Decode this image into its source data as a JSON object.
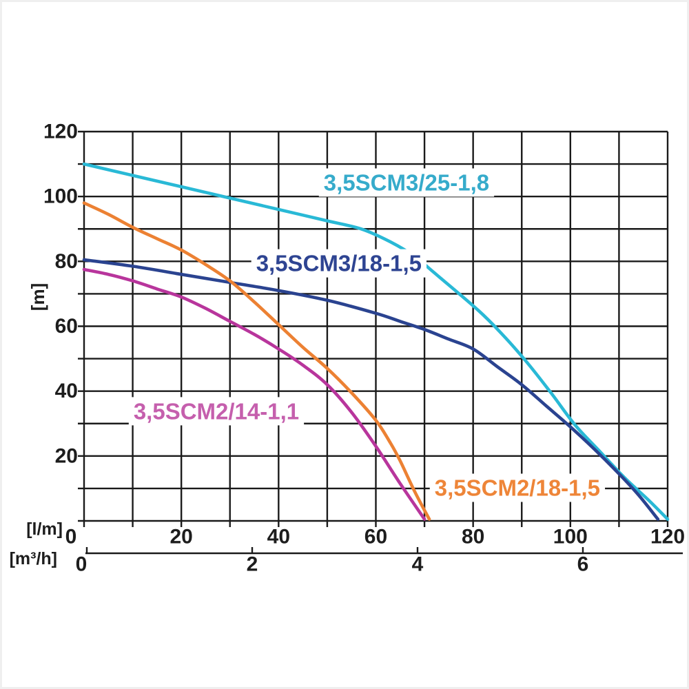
{
  "page": {
    "background": "#ffffff"
  },
  "chart_data": {
    "type": "line",
    "title": "",
    "description": "Pump performance curves: head [m] versus flow rate [l/m] and [m³/h]",
    "ylabel": "[m]",
    "xlabel_primary": "[l/m]",
    "xlabel_secondary": "[m³/h]",
    "grid": true,
    "legend_position": "inline-labels",
    "x_axis_lm": {
      "min": 0,
      "max": 120,
      "grid_step": 10,
      "tick_labels": [
        0,
        20,
        40,
        60,
        80,
        100,
        120
      ]
    },
    "x_axis_m3h": {
      "min": 0,
      "max": 7.2,
      "tick_labels": [
        0,
        2,
        4,
        6
      ]
    },
    "y_axis_m": {
      "min": 0,
      "max": 120,
      "grid_step": 10,
      "tick_labels": [
        20,
        40,
        60,
        80,
        100,
        120
      ]
    },
    "colors": {
      "grid": "#1a1a1a",
      "text": "#1d1d1d",
      "label_background": "#ffffff"
    },
    "series": [
      {
        "name": "3,5SCM3/25-1,8",
        "curve_color": "#29b9d6",
        "label_color": "#36abcb",
        "label_anchor": {
          "x": 66.3,
          "y": 104.3
        },
        "points": [
          [
            0,
            110
          ],
          [
            10,
            106.5
          ],
          [
            20,
            103
          ],
          [
            30,
            99.5
          ],
          [
            40,
            96
          ],
          [
            50,
            92.5
          ],
          [
            57,
            90
          ],
          [
            63,
            86
          ],
          [
            68,
            81.5
          ],
          [
            72,
            76.5
          ],
          [
            81,
            65
          ],
          [
            86,
            57.5
          ],
          [
            91,
            49
          ],
          [
            96,
            39.5
          ],
          [
            101,
            29.5
          ],
          [
            106,
            21.5
          ],
          [
            111,
            13.5
          ],
          [
            116,
            6.5
          ],
          [
            120,
            0.5
          ]
        ]
      },
      {
        "name": "3,5SCM3/18-1,5",
        "curve_color": "#2a4390",
        "label_color": "#2e4492",
        "label_anchor": {
          "x": 52.4,
          "y": 79.4
        },
        "points": [
          [
            0,
            80.5
          ],
          [
            10,
            78.5
          ],
          [
            20,
            76
          ],
          [
            30,
            73.5
          ],
          [
            40,
            71
          ],
          [
            50,
            68
          ],
          [
            60,
            64
          ],
          [
            65,
            61.5
          ],
          [
            70,
            59
          ],
          [
            75,
            56
          ],
          [
            80,
            53
          ],
          [
            85,
            47.5
          ],
          [
            90,
            42
          ],
          [
            95,
            35.5
          ],
          [
            100,
            29
          ],
          [
            105,
            22
          ],
          [
            110,
            14.5
          ],
          [
            114,
            8
          ],
          [
            118,
            0.5
          ]
        ]
      },
      {
        "name": "3,5SCM2/14-1,1",
        "curve_color": "#b8359c",
        "label_color": "#c55fad",
        "label_anchor": {
          "x": 27.2,
          "y": 33.8
        },
        "points": [
          [
            0,
            77.5
          ],
          [
            5,
            76
          ],
          [
            10,
            74
          ],
          [
            15,
            71.5
          ],
          [
            20,
            69
          ],
          [
            25,
            65.5
          ],
          [
            30,
            61.5
          ],
          [
            35,
            57.5
          ],
          [
            40,
            53
          ],
          [
            45,
            48
          ],
          [
            50,
            42
          ],
          [
            55,
            33.5
          ],
          [
            60,
            23
          ],
          [
            65,
            11.5
          ],
          [
            70,
            0.5
          ]
        ]
      },
      {
        "name": "3,5SCM2/18-1,5",
        "curve_color": "#ec8133",
        "label_color": "#ee8538",
        "label_anchor": {
          "x": 89.1,
          "y": 10.2
        },
        "points": [
          [
            0,
            98
          ],
          [
            5,
            94.5
          ],
          [
            10,
            90.5
          ],
          [
            15,
            87
          ],
          [
            20,
            83.5
          ],
          [
            25,
            79
          ],
          [
            30,
            74
          ],
          [
            35,
            67.5
          ],
          [
            40,
            60.5
          ],
          [
            45,
            53.5
          ],
          [
            50,
            47
          ],
          [
            55,
            39.5
          ],
          [
            60,
            31
          ],
          [
            63,
            24
          ],
          [
            65,
            18.5
          ],
          [
            68,
            9
          ],
          [
            71,
            0.5
          ]
        ]
      }
    ]
  }
}
